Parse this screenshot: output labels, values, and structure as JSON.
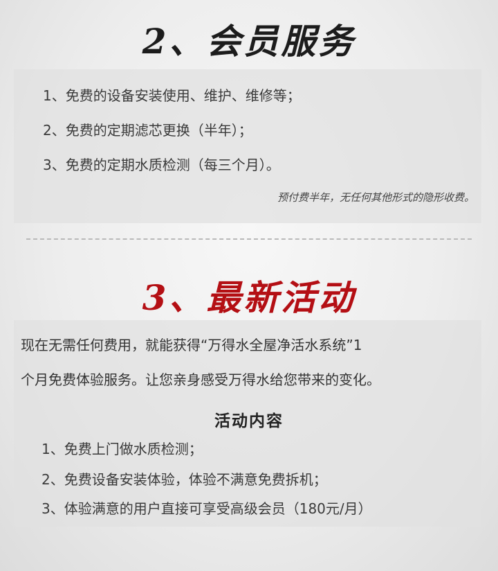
{
  "section2": {
    "title": "2、会员服务",
    "items": [
      "1、免费的设备安装使用、维护、维修等；",
      "2、免费的定期滤芯更换（半年）；",
      "3、免费的定期水质检测（每三个月）。"
    ],
    "note": "预付费半年，无任何其他形式的隐形收费。"
  },
  "section3": {
    "title": "3、最新活动",
    "intro_line1": "现在无需任何费用，就能获得“万得水全屋净活水系统”1",
    "intro_line2": "个月免费体验服务。让您亲身感受万得水给您带来的变化。",
    "subheading": "活动内容",
    "items": [
      "1、免费上门做水质检测；",
      "2、免费设备安装体验，体验不满意免费拆机；",
      "3、体验满意的用户直接可享受高级会员（180元/月）"
    ]
  },
  "colors": {
    "title_dark": "#1c1c1c",
    "title_red": "#b40f14"
  }
}
